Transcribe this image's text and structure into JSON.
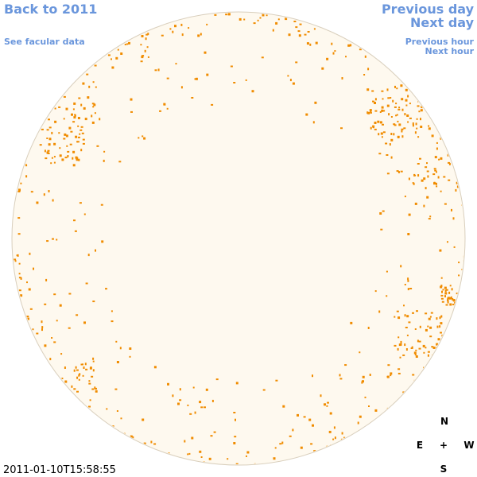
{
  "header": {
    "back_link": "Back to 2011",
    "data_link": "See facular data"
  },
  "navigation": {
    "previous_day": "Previous day",
    "next_day": "Next day",
    "previous_hour": "Previous hour",
    "next_hour": "Next hour"
  },
  "timestamp": "2011-01-10T15:58:55",
  "compass": {
    "north": "N",
    "east": "E",
    "center": "+",
    "west": "W",
    "south": "S"
  }
}
